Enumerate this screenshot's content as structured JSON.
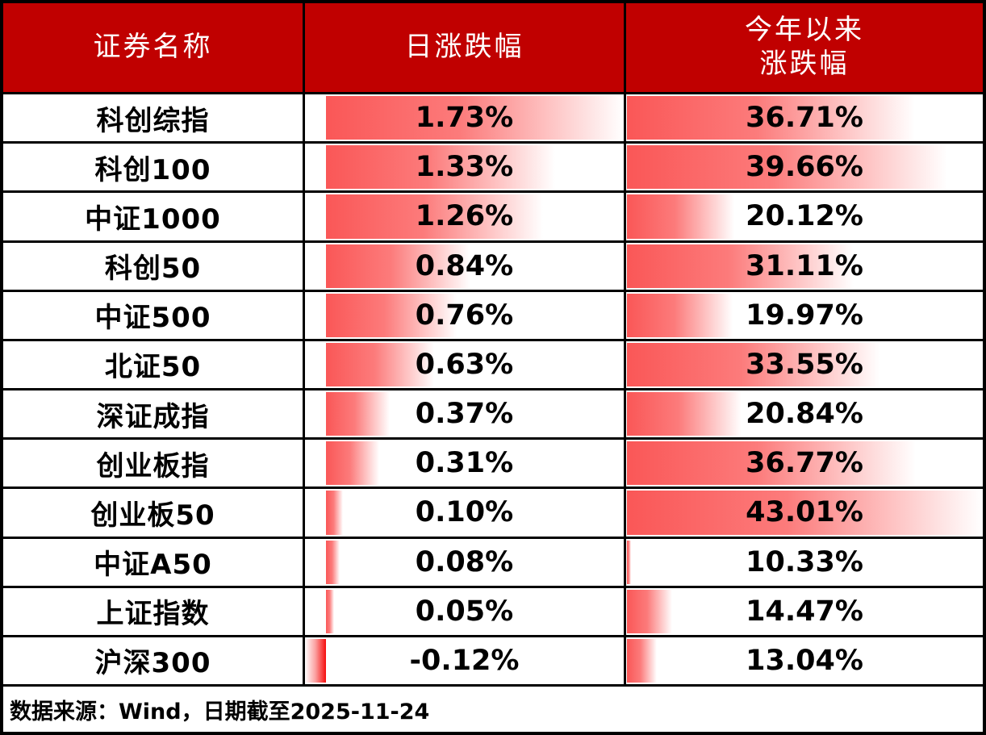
{
  "table": {
    "header": {
      "name_col": "证券名称",
      "daily_col": "日涨跌幅",
      "ytd_col_line1": "今年以来",
      "ytd_col_line2": "涨跌幅"
    },
    "rows": [
      {
        "name": "科创综指",
        "daily": 1.73,
        "daily_label": "1.73%",
        "ytd": 36.71,
        "ytd_label": "36.71%"
      },
      {
        "name": "科创100",
        "daily": 1.33,
        "daily_label": "1.33%",
        "ytd": 39.66,
        "ytd_label": "39.66%"
      },
      {
        "name": "中证1000",
        "daily": 1.26,
        "daily_label": "1.26%",
        "ytd": 20.12,
        "ytd_label": "20.12%"
      },
      {
        "name": "科创50",
        "daily": 0.84,
        "daily_label": "0.84%",
        "ytd": 31.11,
        "ytd_label": "31.11%"
      },
      {
        "name": "中证500",
        "daily": 0.76,
        "daily_label": "0.76%",
        "ytd": 19.97,
        "ytd_label": "19.97%"
      },
      {
        "name": "北证50",
        "daily": 0.63,
        "daily_label": "0.63%",
        "ytd": 33.55,
        "ytd_label": "33.55%"
      },
      {
        "name": "深证成指",
        "daily": 0.37,
        "daily_label": "0.37%",
        "ytd": 20.84,
        "ytd_label": "20.84%"
      },
      {
        "name": "创业板指",
        "daily": 0.31,
        "daily_label": "0.31%",
        "ytd": 36.77,
        "ytd_label": "36.77%"
      },
      {
        "name": "创业板50",
        "daily": 0.1,
        "daily_label": "0.10%",
        "ytd": 43.01,
        "ytd_label": "43.01%"
      },
      {
        "name": "中证A50",
        "daily": 0.08,
        "daily_label": "0.08%",
        "ytd": 10.33,
        "ytd_label": "10.33%"
      },
      {
        "name": "上证指数",
        "daily": 0.05,
        "daily_label": "0.05%",
        "ytd": 14.47,
        "ytd_label": "14.47%"
      },
      {
        "name": "沪深300",
        "daily": -0.12,
        "daily_label": "-0.12%",
        "ytd": 13.04,
        "ytd_label": "13.04%"
      }
    ],
    "footer_text": "数据来源：Wind，日期截至2025-11-24"
  },
  "chart_data": {
    "type": "table",
    "title": "",
    "columns": [
      "证券名称",
      "日涨跌幅",
      "今年以来涨跌幅"
    ],
    "rows": [
      [
        "科创综指",
        1.73,
        36.71
      ],
      [
        "科创100",
        1.33,
        39.66
      ],
      [
        "中证1000",
        1.26,
        20.12
      ],
      [
        "科创50",
        0.84,
        31.11
      ],
      [
        "中证500",
        0.76,
        19.97
      ],
      [
        "北证50",
        0.63,
        33.55
      ],
      [
        "深证成指",
        0.37,
        20.84
      ],
      [
        "创业板指",
        0.31,
        36.77
      ],
      [
        "创业板50",
        0.1,
        43.01
      ],
      [
        "中证A50",
        0.08,
        10.33
      ],
      [
        "上证指数",
        0.05,
        14.47
      ],
      [
        "沪深300",
        -0.12,
        13.04
      ]
    ],
    "bar_columns": [
      "日涨跌幅",
      "今年以来涨跌幅"
    ],
    "bar_style": "gradient-databar",
    "note": "数据来源：Wind，日期截至2025-11-24"
  },
  "colors": {
    "header_bg": "#c00000",
    "header_text": "#ffffff",
    "bar_positive": "#fa5757",
    "bar_negative": "#f60d0d",
    "grid_border": "#000000",
    "value_text": "#000000"
  }
}
